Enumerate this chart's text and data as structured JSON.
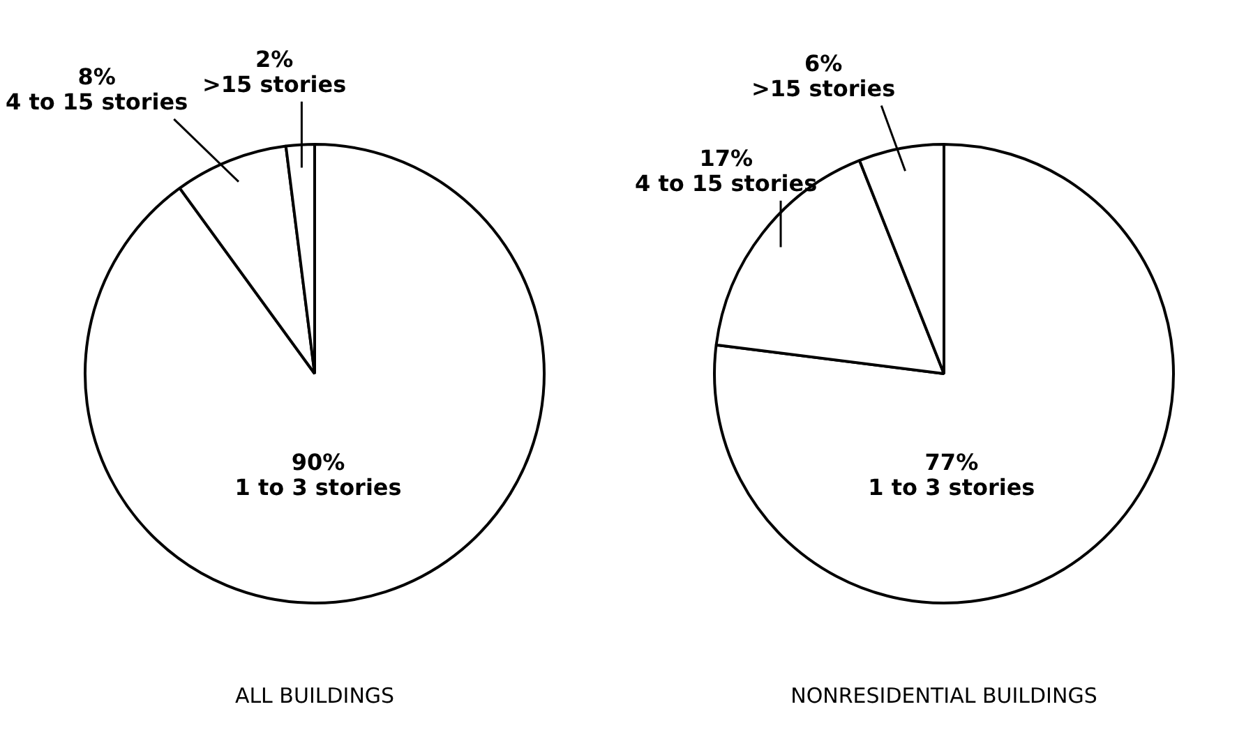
{
  "chart_data": [
    {
      "type": "pie",
      "title": "ALL BUILDINGS",
      "categories": [
        "1 to 3 stories",
        "4 to 15 stories",
        ">15 stories"
      ],
      "values": [
        90,
        8,
        2
      ],
      "value_labels": [
        "90%",
        "8%",
        "2%"
      ],
      "colors": [
        "#ffffff",
        "#ffffff",
        "#ffffff"
      ],
      "legend": false
    },
    {
      "type": "pie",
      "title": "NONRESIDENTIAL BUILDINGS",
      "categories": [
        "1 to 3 stories",
        "4 to 15 stories",
        ">15 stories"
      ],
      "values": [
        77,
        17,
        6
      ],
      "value_labels": [
        "77%",
        "17%",
        "6%"
      ],
      "colors": [
        "#ffffff",
        "#ffffff",
        "#ffffff"
      ],
      "legend": false
    }
  ]
}
